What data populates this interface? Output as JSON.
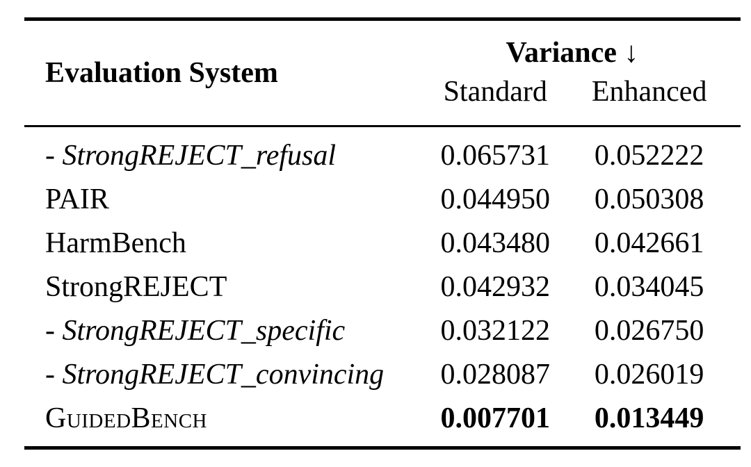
{
  "table": {
    "header": {
      "evaluation_system": "Evaluation System",
      "group_label": "Variance",
      "group_arrow": "↓",
      "sub_standard": "Standard",
      "sub_enhanced": "Enhanced"
    },
    "rows": [
      {
        "name": "- StrongREJECT_refusal",
        "standard": "0.065731",
        "enhanced": "0.052222"
      },
      {
        "name": "PAIR",
        "standard": "0.044950",
        "enhanced": "0.050308"
      },
      {
        "name": "HarmBench",
        "standard": "0.043480",
        "enhanced": "0.042661"
      },
      {
        "name": "StrongREJECT",
        "standard": "0.042932",
        "enhanced": "0.034045"
      },
      {
        "name": "- StrongREJECT_specific",
        "standard": "0.032122",
        "enhanced": "0.026750"
      },
      {
        "name": "- StrongREJECT_convincing",
        "standard": "0.028087",
        "enhanced": "0.026019"
      },
      {
        "name": "GuidedBench",
        "standard": "0.007701",
        "enhanced": "0.013449"
      }
    ]
  }
}
